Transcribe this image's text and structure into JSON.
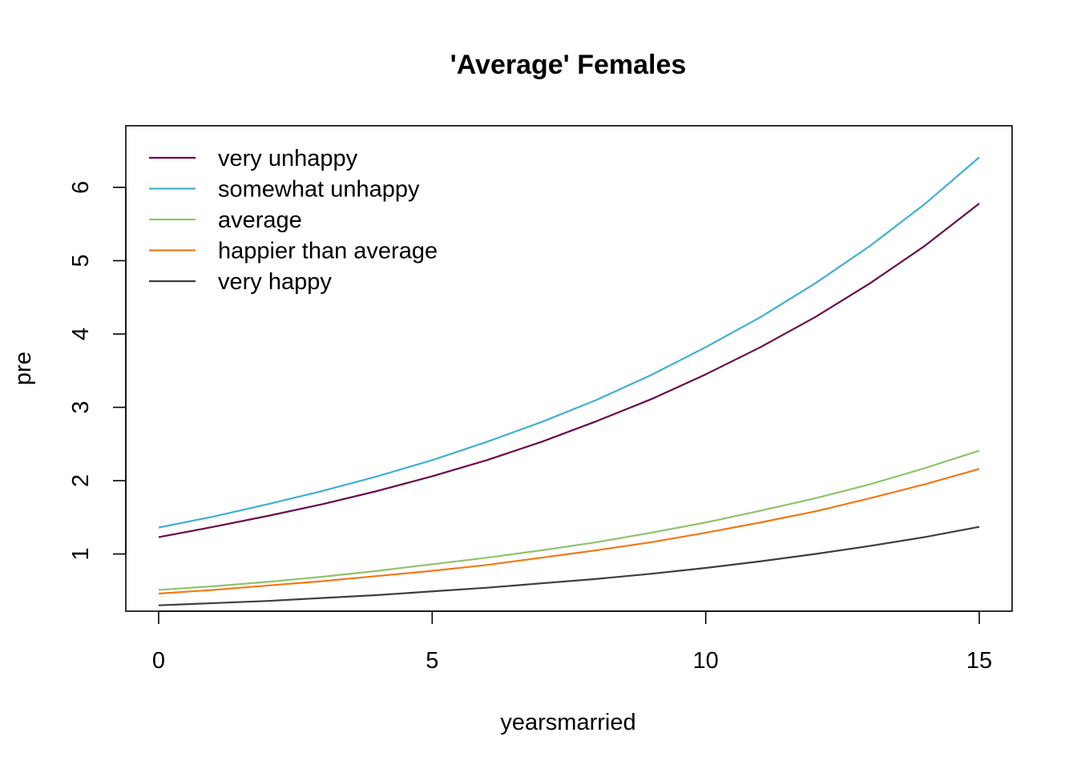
{
  "chart_data": {
    "type": "line",
    "title": "'Average' Females",
    "xlabel": "yearsmarried",
    "ylabel": "pre",
    "xlim": [
      -0.6,
      15.6
    ],
    "ylim": [
      0.22,
      6.84
    ],
    "x_ticks": [
      0,
      5,
      10,
      15
    ],
    "y_ticks": [
      1,
      2,
      3,
      4,
      5,
      6
    ],
    "grid": false,
    "legend_position": "top-left",
    "x": [
      0,
      1,
      2,
      3,
      4,
      5,
      6,
      7,
      8,
      9,
      10,
      11,
      12,
      13,
      14,
      15
    ],
    "series": [
      {
        "name": "very unhappy",
        "color": "#6a0a4a",
        "values": [
          1.23,
          1.37,
          1.52,
          1.68,
          1.86,
          2.06,
          2.28,
          2.53,
          2.81,
          3.11,
          3.45,
          3.82,
          4.23,
          4.69,
          5.2,
          5.78
        ]
      },
      {
        "name": "somewhat unhappy",
        "color": "#3fb0d3",
        "values": [
          1.36,
          1.51,
          1.68,
          1.86,
          2.06,
          2.28,
          2.53,
          2.8,
          3.1,
          3.44,
          3.82,
          4.23,
          4.69,
          5.2,
          5.77,
          6.41
        ]
      },
      {
        "name": "average",
        "color": "#8fc36c",
        "values": [
          0.51,
          0.56,
          0.62,
          0.69,
          0.77,
          0.86,
          0.95,
          1.05,
          1.16,
          1.29,
          1.43,
          1.59,
          1.76,
          1.95,
          2.17,
          2.41
        ]
      },
      {
        "name": "happier than average",
        "color": "#f07918",
        "values": [
          0.46,
          0.51,
          0.57,
          0.63,
          0.7,
          0.77,
          0.85,
          0.95,
          1.05,
          1.16,
          1.29,
          1.43,
          1.58,
          1.76,
          1.95,
          2.16
        ]
      },
      {
        "name": "very happy",
        "color": "#3a3f45",
        "values": [
          0.3,
          0.33,
          0.36,
          0.4,
          0.44,
          0.49,
          0.54,
          0.6,
          0.66,
          0.73,
          0.81,
          0.9,
          1.0,
          1.11,
          1.23,
          1.37
        ]
      }
    ]
  }
}
